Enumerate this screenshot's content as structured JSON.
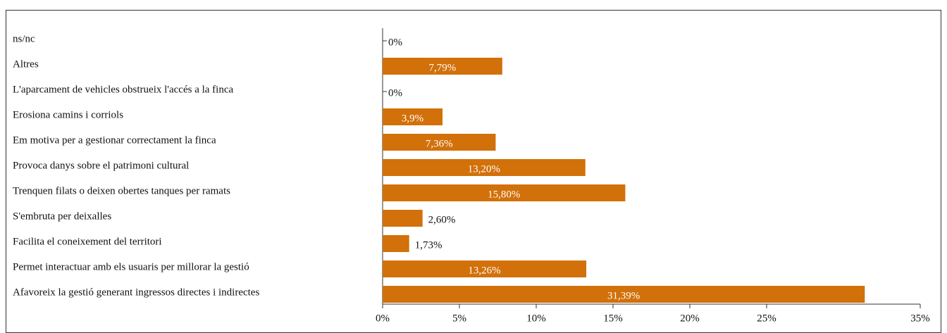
{
  "chart_data": {
    "type": "barh",
    "categories": [
      "ns/nc",
      "Altres",
      "L'aparcament de vehicles obstrueix l'accés a la finca",
      "Erosiona camins i corriols",
      "Em motiva per a gestionar correctament la finca",
      "Provoca danys sobre el patrimoni cultural",
      "Trenquen filats o deixen obertes tanques per ramats",
      "S'embruta per deixalles",
      "Facilita el coneixement del territori",
      "Permet interactuar amb els usuaris per millorar la gestió",
      "Afavoreix la gestió generant ingressos directes i indirectes"
    ],
    "values": [
      0,
      7.79,
      0,
      3.9,
      7.36,
      13.2,
      15.8,
      2.6,
      1.73,
      13.26,
      31.39
    ],
    "value_labels": [
      "0%",
      "7,79%",
      "0%",
      "3,9%",
      "7,36%",
      "13,20%",
      "15,80%",
      "2,60%",
      "1,73%",
      "13,26%",
      "31,39%"
    ],
    "color": "#d2700a",
    "xlim": [
      0,
      35
    ],
    "xticks": [
      {
        "value": 0,
        "label": "0%"
      },
      {
        "value": 5,
        "label": "5%"
      },
      {
        "value": 10,
        "label": "10%"
      },
      {
        "value": 15,
        "label": "15%"
      },
      {
        "value": 20,
        "label": "20%"
      },
      {
        "value": 25,
        "label": "25%"
      },
      {
        "value": 35,
        "label": "35%"
      }
    ]
  }
}
